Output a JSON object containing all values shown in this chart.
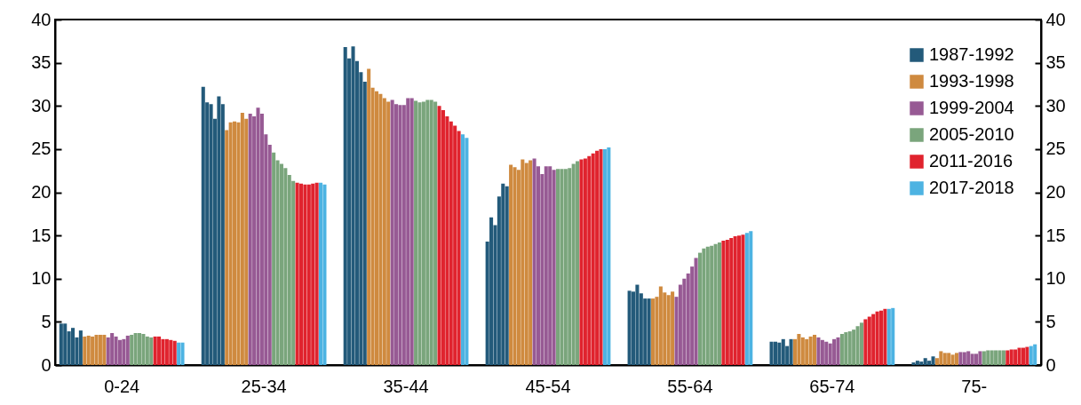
{
  "chart_data": {
    "type": "bar",
    "categories": [
      "0-24",
      "25-34",
      "35-44",
      "45-54",
      "55-64",
      "65-74",
      "75-"
    ],
    "series": [
      {
        "name": "1987-1992",
        "color": "#235a7a",
        "values": [
          4.8,
          32.2,
          36.8,
          14.3,
          8.6,
          2.7,
          0.3
        ]
      },
      {
        "color": "#235a7a",
        "values": [
          4.8,
          30.4,
          35.5,
          17.1,
          8.5,
          2.7,
          0.5
        ]
      },
      {
        "color": "#235a7a",
        "values": [
          3.9,
          30.2,
          36.9,
          16.2,
          9.3,
          2.6,
          0.4
        ]
      },
      {
        "color": "#235a7a",
        "values": [
          4.3,
          28.5,
          35.2,
          19.5,
          8.3,
          3.0,
          0.8
        ]
      },
      {
        "color": "#235a7a",
        "values": [
          3.2,
          31.1,
          33.9,
          21.0,
          7.7,
          2.2,
          0.5
        ]
      },
      {
        "color": "#235a7a",
        "values": [
          4.0,
          30.2,
          32.8,
          20.7,
          7.7,
          3.0,
          1.0
        ]
      },
      {
        "name": "1993-1998",
        "color": "#cf8a3f",
        "values": [
          3.3,
          27.2,
          34.3,
          23.2,
          7.7,
          3.0,
          0.8
        ]
      },
      {
        "color": "#cf8a3f",
        "values": [
          3.4,
          28.1,
          32.1,
          22.9,
          7.9,
          3.6,
          1.6
        ]
      },
      {
        "color": "#cf8a3f",
        "values": [
          3.3,
          28.2,
          31.7,
          22.6,
          9.1,
          3.2,
          1.4
        ]
      },
      {
        "color": "#cf8a3f",
        "values": [
          3.5,
          28.1,
          31.4,
          23.8,
          8.4,
          3.0,
          1.4
        ]
      },
      {
        "color": "#cf8a3f",
        "values": [
          3.5,
          29.2,
          30.9,
          23.4,
          8.1,
          3.3,
          1.2
        ]
      },
      {
        "color": "#cf8a3f",
        "values": [
          3.5,
          28.5,
          30.5,
          23.7,
          8.5,
          3.5,
          1.4
        ]
      },
      {
        "name": "1999-2004",
        "color": "#975a94",
        "values": [
          3.2,
          29.1,
          30.7,
          23.9,
          7.9,
          3.2,
          1.5
        ]
      },
      {
        "color": "#975a94",
        "values": [
          3.7,
          28.8,
          30.2,
          23.0,
          9.3,
          2.9,
          1.5
        ]
      },
      {
        "color": "#975a94",
        "values": [
          3.3,
          29.8,
          30.1,
          22.1,
          10.0,
          2.7,
          1.6
        ]
      },
      {
        "color": "#975a94",
        "values": [
          2.9,
          29.1,
          30.1,
          23.0,
          10.6,
          2.5,
          1.3
        ]
      },
      {
        "color": "#975a94",
        "values": [
          3.0,
          26.7,
          30.9,
          23.0,
          11.4,
          3.0,
          1.3
        ]
      },
      {
        "color": "#975a94",
        "values": [
          3.4,
          25.5,
          30.9,
          22.6,
          12.4,
          3.2,
          1.6
        ]
      },
      {
        "name": "2005-2010",
        "color": "#7aa57c",
        "values": [
          3.5,
          24.6,
          30.6,
          22.7,
          13.0,
          3.6,
          1.6
        ]
      },
      {
        "color": "#7aa57c",
        "values": [
          3.7,
          23.7,
          30.4,
          22.7,
          13.5,
          3.8,
          1.7
        ]
      },
      {
        "color": "#7aa57c",
        "values": [
          3.7,
          23.3,
          30.5,
          22.7,
          13.7,
          3.9,
          1.7
        ]
      },
      {
        "color": "#7aa57c",
        "values": [
          3.6,
          22.8,
          30.7,
          22.8,
          13.8,
          4.1,
          1.7
        ]
      },
      {
        "color": "#7aa57c",
        "values": [
          3.3,
          22.0,
          30.7,
          23.3,
          14.0,
          4.5,
          1.7
        ]
      },
      {
        "color": "#7aa57c",
        "values": [
          3.2,
          21.3,
          30.5,
          23.6,
          14.2,
          4.9,
          1.7
        ]
      },
      {
        "name": "2011-2016",
        "color": "#e0232e",
        "values": [
          3.3,
          21.1,
          30.0,
          23.8,
          14.4,
          5.3,
          1.7
        ]
      },
      {
        "color": "#e0232e",
        "values": [
          3.3,
          21.0,
          29.5,
          23.9,
          14.5,
          5.6,
          1.8
        ]
      },
      {
        "color": "#e0232e",
        "values": [
          3.0,
          20.9,
          28.8,
          24.2,
          14.7,
          5.9,
          1.8
        ]
      },
      {
        "color": "#e0232e",
        "values": [
          3.0,
          20.9,
          28.2,
          24.5,
          14.9,
          6.2,
          2.0
        ]
      },
      {
        "color": "#e0232e",
        "values": [
          2.9,
          21.0,
          27.7,
          24.8,
          15.0,
          6.3,
          2.0
        ]
      },
      {
        "color": "#e0232e",
        "values": [
          2.8,
          21.1,
          27.1,
          25.0,
          15.1,
          6.5,
          2.1
        ]
      },
      {
        "name": "2017-2018",
        "color": "#4db3e2",
        "values": [
          2.6,
          21.1,
          26.7,
          25.0,
          15.3,
          6.5,
          2.2
        ]
      },
      {
        "color": "#4db3e2",
        "values": [
          2.6,
          20.9,
          26.3,
          25.2,
          15.5,
          6.6,
          2.4
        ]
      }
    ],
    "ylim": [
      0,
      40
    ],
    "yticks": [
      0,
      5,
      10,
      15,
      20,
      25,
      30,
      35,
      40
    ],
    "y2lim": [
      0,
      40
    ],
    "y2ticks": [
      0,
      5,
      10,
      15,
      20,
      25,
      30,
      35,
      40
    ],
    "grid": false,
    "legend": "top right"
  }
}
